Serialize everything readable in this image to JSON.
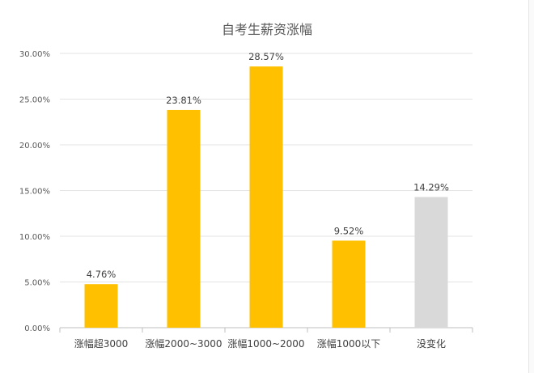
{
  "chart_data": {
    "type": "bar",
    "title": "自考生薪资涨幅",
    "categories": [
      "涨幅超3000",
      "涨幅2000~3000",
      "涨幅1000~2000",
      "涨幅1000以下",
      "没变化"
    ],
    "values": [
      4.76,
      23.81,
      28.57,
      9.52,
      14.29
    ],
    "value_labels": [
      "4.76%",
      "23.81%",
      "28.57%",
      "9.52%",
      "14.29%"
    ],
    "y_ticks": [
      "0.00%",
      "5.00%",
      "10.00%",
      "15.00%",
      "20.00%",
      "25.00%",
      "30.00%"
    ],
    "ylim": [
      0,
      30
    ],
    "grid": true,
    "legend": "none",
    "bar_colors": [
      "#FFC000",
      "#FFC000",
      "#FFC000",
      "#FFC000",
      "#D9D9D9"
    ]
  }
}
